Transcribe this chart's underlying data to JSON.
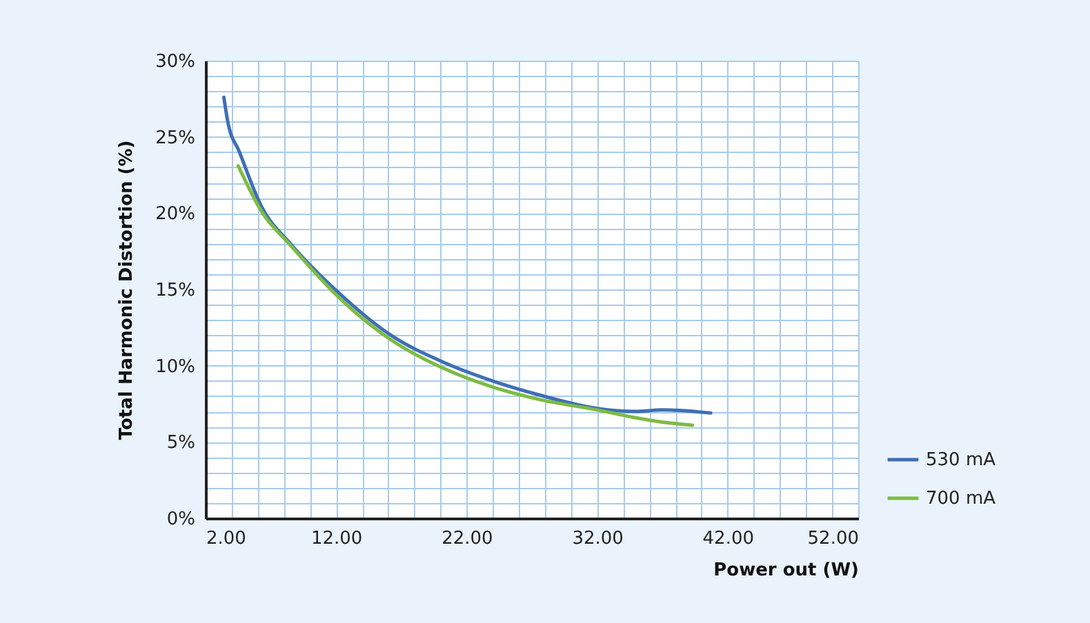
{
  "chart_data": {
    "type": "line",
    "xlabel": "Power out (W)",
    "ylabel": "Total Harmonic Distortion (%)",
    "series": [
      {
        "name": "530 mA",
        "color": "#3f6fb5",
        "x": [
          3.4,
          3.7,
          4.6,
          6.3,
          8.5,
          12.3,
          16.2,
          20.3,
          24.0,
          27.5,
          32.0,
          34.9,
          37.0,
          40.7
        ],
        "values": [
          27.6,
          26.0,
          24.0,
          20.4,
          18.0,
          14.7,
          12.0,
          10.2,
          9.0,
          8.1,
          7.2,
          7.0,
          7.1,
          6.9
        ]
      },
      {
        "name": "700 mA",
        "color": "#7dbb42",
        "x": [
          4.5,
          6.3,
          8.5,
          12.3,
          16.2,
          20.3,
          24.0,
          27.5,
          32.0,
          34.9,
          37.0,
          39.3
        ],
        "values": [
          23.1,
          20.1,
          17.9,
          14.4,
          11.7,
          9.8,
          8.6,
          7.8,
          7.1,
          6.6,
          6.3,
          6.1
        ]
      }
    ],
    "xlim": [
      2,
      52
    ],
    "ylim": [
      0,
      30
    ],
    "xticks": [
      {
        "value": 2,
        "label": "2.00"
      },
      {
        "value": 4,
        "label": null
      },
      {
        "value": 6,
        "label": null
      },
      {
        "value": 8,
        "label": null
      },
      {
        "value": 10,
        "label": null
      },
      {
        "value": 12,
        "label": "12.00"
      },
      {
        "value": 14,
        "label": null
      },
      {
        "value": 16,
        "label": null
      },
      {
        "value": 18,
        "label": null
      },
      {
        "value": 20,
        "label": null
      },
      {
        "value": 22,
        "label": "22.00"
      },
      {
        "value": 24,
        "label": null
      },
      {
        "value": 26,
        "label": null
      },
      {
        "value": 28,
        "label": null
      },
      {
        "value": 30,
        "label": null
      },
      {
        "value": 32,
        "label": "32.00"
      },
      {
        "value": 34,
        "label": null
      },
      {
        "value": 36,
        "label": null
      },
      {
        "value": 38,
        "label": null
      },
      {
        "value": 40,
        "label": null
      },
      {
        "value": 42,
        "label": "42.00"
      },
      {
        "value": 44,
        "label": null
      },
      {
        "value": 46,
        "label": null
      },
      {
        "value": 48,
        "label": null
      },
      {
        "value": 50,
        "label": null
      },
      {
        "value": 52,
        "label": "52.00"
      }
    ],
    "yticks": [
      {
        "value": 0,
        "label": "0%"
      },
      {
        "value": 1,
        "label": null
      },
      {
        "value": 2,
        "label": null
      },
      {
        "value": 3,
        "label": null
      },
      {
        "value": 4,
        "label": null
      },
      {
        "value": 5,
        "label": "5%"
      },
      {
        "value": 6,
        "label": null
      },
      {
        "value": 7,
        "label": null
      },
      {
        "value": 8,
        "label": null
      },
      {
        "value": 9,
        "label": null
      },
      {
        "value": 10,
        "label": "10%"
      },
      {
        "value": 11,
        "label": null
      },
      {
        "value": 12,
        "label": null
      },
      {
        "value": 13,
        "label": null
      },
      {
        "value": 14,
        "label": null
      },
      {
        "value": 15,
        "label": "15%"
      },
      {
        "value": 16,
        "label": null
      },
      {
        "value": 17,
        "label": null
      },
      {
        "value": 18,
        "label": null
      },
      {
        "value": 19,
        "label": null
      },
      {
        "value": 20,
        "label": "20%"
      },
      {
        "value": 21,
        "label": null
      },
      {
        "value": 22,
        "label": null
      },
      {
        "value": 23,
        "label": null
      },
      {
        "value": 24,
        "label": null
      },
      {
        "value": 25,
        "label": "25%"
      },
      {
        "value": 26,
        "label": null
      },
      {
        "value": 27,
        "label": null
      },
      {
        "value": 28,
        "label": null
      },
      {
        "value": 29,
        "label": null
      },
      {
        "value": 30,
        "label": "30%"
      }
    ],
    "grid": true,
    "legend": "bottom right",
    "marker": "none",
    "line_style": "solid"
  }
}
